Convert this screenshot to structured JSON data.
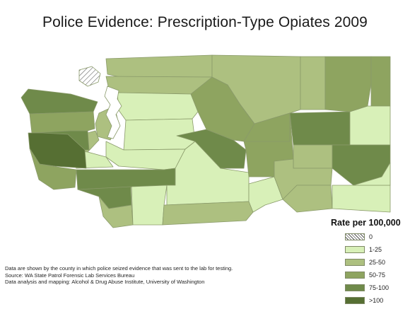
{
  "title": "Police Evidence: Prescription-Type Opiates 2009",
  "colors": {
    "c0": "hatch",
    "c1": "#d8f0b8",
    "c2": "#adc080",
    "c3": "#8ea460",
    "c4": "#6f8a4a",
    "c5": "#566f33",
    "water": "#ffffff",
    "border": "#8a9a6a"
  },
  "legend": {
    "title": "Rate per 100,000",
    "items": [
      {
        "label": "0",
        "class": "c0"
      },
      {
        "label": "1-25",
        "class": "c1"
      },
      {
        "label": "25-50",
        "class": "c2"
      },
      {
        "label": "50-75",
        "class": "c3"
      },
      {
        "label": "75-100",
        "class": "c4"
      },
      {
        "label": ">100",
        "class": "c5"
      }
    ]
  },
  "notes": [
    "Data are shown by the county in which police seized evidence that was sent to the lab for testing.",
    "Source: WA State Patrol Forensic Lab Services Bureau",
    "Data analysis and mapping: Alcohol & Drug Abuse Institute, University of Washington"
  ]
}
